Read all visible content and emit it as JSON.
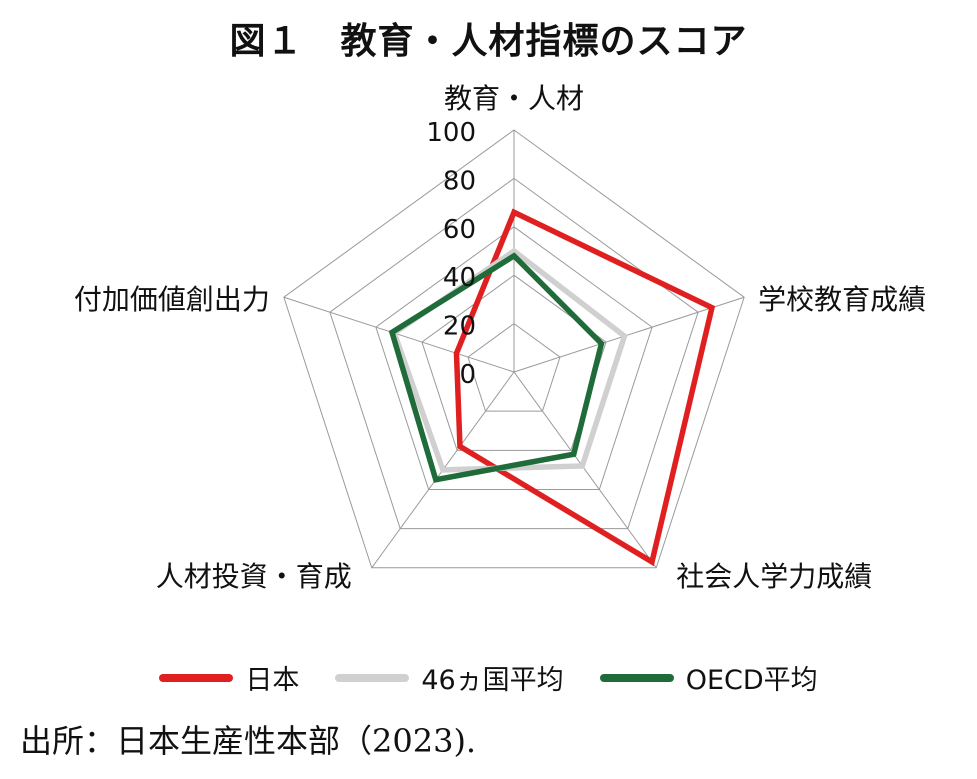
{
  "title": "図１　教育・人材指標のスコア",
  "source": "出所：日本生産性本部（2023).",
  "chart_data": {
    "type": "radar",
    "axes": [
      "教育・人材",
      "学校教育成績",
      "社会人学力成績",
      "人材投資・育成",
      "付加価値創出力"
    ],
    "ticks": [
      "0",
      "20",
      "40",
      "60",
      "80",
      "100"
    ],
    "range": [
      0,
      100
    ],
    "grid": true,
    "legend_position": "bottom",
    "series": [
      {
        "name": "日本",
        "color": "#e02020",
        "values": [
          66,
          86,
          97,
          38,
          25
        ]
      },
      {
        "name": "46ヵ国平均",
        "color": "#d0d0d0",
        "values": [
          50,
          48,
          48,
          50,
          52
        ]
      },
      {
        "name": "OECD平均",
        "color": "#1f6b3a",
        "values": [
          48,
          38,
          42,
          55,
          53
        ]
      }
    ]
  }
}
